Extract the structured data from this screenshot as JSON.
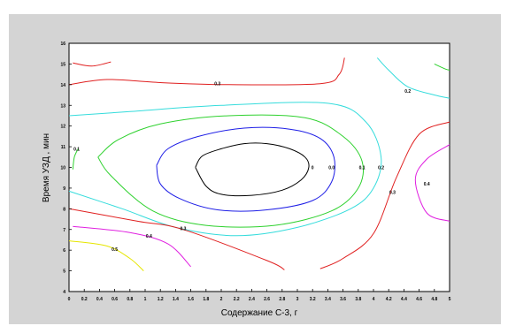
{
  "chart_data": {
    "type": "contour",
    "xlabel": "Содержание С-3, г",
    "ylabel": "Время УЗД , мин",
    "xlim": [
      0,
      5
    ],
    "ylim": [
      4,
      16
    ],
    "x_ticks": [
      "0",
      "0.2",
      "0.4",
      "0.6",
      "0.8",
      "1",
      "1.2",
      "1.4",
      "1.6",
      "1.8",
      "2",
      "2.2",
      "2.4",
      "2.6",
      "2.8",
      "3",
      "3.2",
      "3.4",
      "3.6",
      "3.8",
      "4",
      "4.2",
      "4.4",
      "4.6",
      "4.8",
      "5"
    ],
    "y_ticks": [
      "4",
      "5",
      "6",
      "7",
      "8",
      "9",
      "10",
      "11",
      "12",
      "13",
      "14",
      "15",
      "16"
    ],
    "grid": false,
    "contours": [
      {
        "level": "0",
        "color": "#000000",
        "paths": [
          [
            [
              1.66,
              10
            ],
            [
              1.75,
              10.55
            ],
            [
              2,
              10.9
            ],
            [
              2.3,
              11.15
            ],
            [
              2.6,
              11.15
            ],
            [
              2.9,
              10.9
            ],
            [
              3.1,
              10.5
            ],
            [
              3.15,
              10
            ],
            [
              3.05,
              9.4
            ],
            [
              2.8,
              8.9
            ],
            [
              2.4,
              8.65
            ],
            [
              2,
              8.7
            ],
            [
              1.8,
              9.1
            ],
            [
              1.66,
              10
            ]
          ]
        ],
        "labels": [
          {
            "text": "0",
            "x": 3.2,
            "y": 10
          }
        ]
      },
      {
        "level": "0.0",
        "color": "#1e1ee6",
        "paths": [
          [
            [
              1.15,
              10.1
            ],
            [
              1.3,
              10.9
            ],
            [
              1.7,
              11.5
            ],
            [
              2.3,
              11.9
            ],
            [
              2.9,
              11.85
            ],
            [
              3.3,
              11.4
            ],
            [
              3.48,
              10.5
            ],
            [
              3.45,
              9.3
            ],
            [
              3.2,
              8.4
            ],
            [
              2.6,
              7.95
            ],
            [
              1.95,
              7.95
            ],
            [
              1.45,
              8.5
            ],
            [
              1.2,
              9.2
            ],
            [
              1.15,
              10.1
            ]
          ]
        ],
        "labels": [
          {
            "text": "0.0",
            "x": 3.45,
            "y": 10
          }
        ]
      },
      {
        "level": "0.1",
        "color": "#2ed12e",
        "paths": [
          [
            [
              0.38,
              10.5
            ],
            [
              0.65,
              11.35
            ],
            [
              1.2,
              12.1
            ],
            [
              2.1,
              12.5
            ],
            [
              3.1,
              12.4
            ],
            [
              3.6,
              11.5
            ],
            [
              3.85,
              10.3
            ],
            [
              3.8,
              9
            ],
            [
              3.45,
              7.9
            ],
            [
              2.7,
              7.2
            ],
            [
              1.8,
              7.2
            ],
            [
              1.1,
              7.9
            ],
            [
              0.55,
              9.6
            ],
            [
              0.38,
              10.5
            ]
          ],
          [
            [
              0.05,
              9.9
            ],
            [
              0.07,
              10.5
            ],
            [
              0.12,
              10.9
            ]
          ]
        ],
        "labels": [
          {
            "text": "0.1",
            "x": 0.1,
            "y": 10.9
          },
          {
            "text": "0.1",
            "x": 3.85,
            "y": 10
          }
        ]
      },
      {
        "level": "0.2",
        "color": "#35dcdc",
        "paths": [
          [
            [
              0,
              12.5
            ],
            [
              0.8,
              12.7
            ],
            [
              2,
              13
            ],
            [
              3.4,
              13.1
            ],
            [
              3.9,
              12.2
            ],
            [
              4.1,
              10.5
            ],
            [
              4,
              9
            ],
            [
              3.7,
              8
            ],
            [
              3,
              7.1
            ],
            [
              2.2,
              6.7
            ],
            [
              1.4,
              7.1
            ],
            [
              0.7,
              8
            ],
            [
              0,
              8.85
            ]
          ],
          [
            [
              4.05,
              15.3
            ],
            [
              4.2,
              14.7
            ],
            [
              4.45,
              13.9
            ],
            [
              4.8,
              13.5
            ],
            [
              5,
              13.35
            ]
          ]
        ],
        "labels": [
          {
            "text": "0.2",
            "x": 4.1,
            "y": 10
          },
          {
            "text": "0.2",
            "x": 4.45,
            "y": 13.7
          }
        ]
      },
      {
        "level": "0.3",
        "color": "#e02020",
        "paths": [
          [
            [
              0.05,
              15.05
            ],
            [
              0.3,
              14.9
            ],
            [
              0.55,
              15.1
            ]
          ],
          [
            [
              0,
              14
            ],
            [
              0.5,
              14.25
            ],
            [
              1.2,
              14.1
            ],
            [
              2.1,
              14
            ],
            [
              3.3,
              14.05
            ],
            [
              3.55,
              14.5
            ],
            [
              3.62,
              15.3
            ]
          ],
          [
            [
              0,
              8
            ],
            [
              0.9,
              7.4
            ],
            [
              1.5,
              7
            ],
            [
              2.6,
              5.5
            ],
            [
              2.83,
              5.05
            ]
          ],
          [
            [
              3.3,
              5.1
            ],
            [
              3.6,
              5.6
            ],
            [
              4,
              6.8
            ],
            [
              4.3,
              9.5
            ],
            [
              4.6,
              11.6
            ],
            [
              5,
              12.2
            ]
          ]
        ],
        "labels": [
          {
            "text": "0.3",
            "x": 1.95,
            "y": 14.05
          },
          {
            "text": "0.3",
            "x": 1.5,
            "y": 7.05
          },
          {
            "text": "0.3",
            "x": 4.25,
            "y": 8.8
          }
        ]
      },
      {
        "level": "0.4",
        "color": "#e020e0",
        "paths": [
          [
            [
              0.05,
              7.15
            ],
            [
              0.8,
              6.85
            ],
            [
              1.3,
              6.3
            ],
            [
              1.6,
              5.2
            ]
          ],
          [
            [
              5,
              11.1
            ],
            [
              4.7,
              10.4
            ],
            [
              4.55,
              9.4
            ],
            [
              4.7,
              7.8
            ],
            [
              5,
              7.4
            ]
          ]
        ],
        "labels": [
          {
            "text": "0.4",
            "x": 1.05,
            "y": 6.7
          },
          {
            "text": "0.4",
            "x": 4.7,
            "y": 9.2
          }
        ]
      },
      {
        "level": "0.5",
        "color": "#e6e600",
        "paths": [
          [
            [
              0,
              6.45
            ],
            [
              0.5,
              6.2
            ],
            [
              0.8,
              5.6
            ],
            [
              0.98,
              5
            ]
          ]
        ],
        "labels": [
          {
            "text": "0.5",
            "x": 0.6,
            "y": 6.05
          }
        ]
      },
      {
        "level": "0.0",
        "color": "#2ed12e",
        "paths": [
          [
            [
              4.8,
              15
            ],
            [
              4.95,
              14.75
            ],
            [
              5,
              14.7
            ]
          ]
        ],
        "labels": []
      }
    ]
  }
}
